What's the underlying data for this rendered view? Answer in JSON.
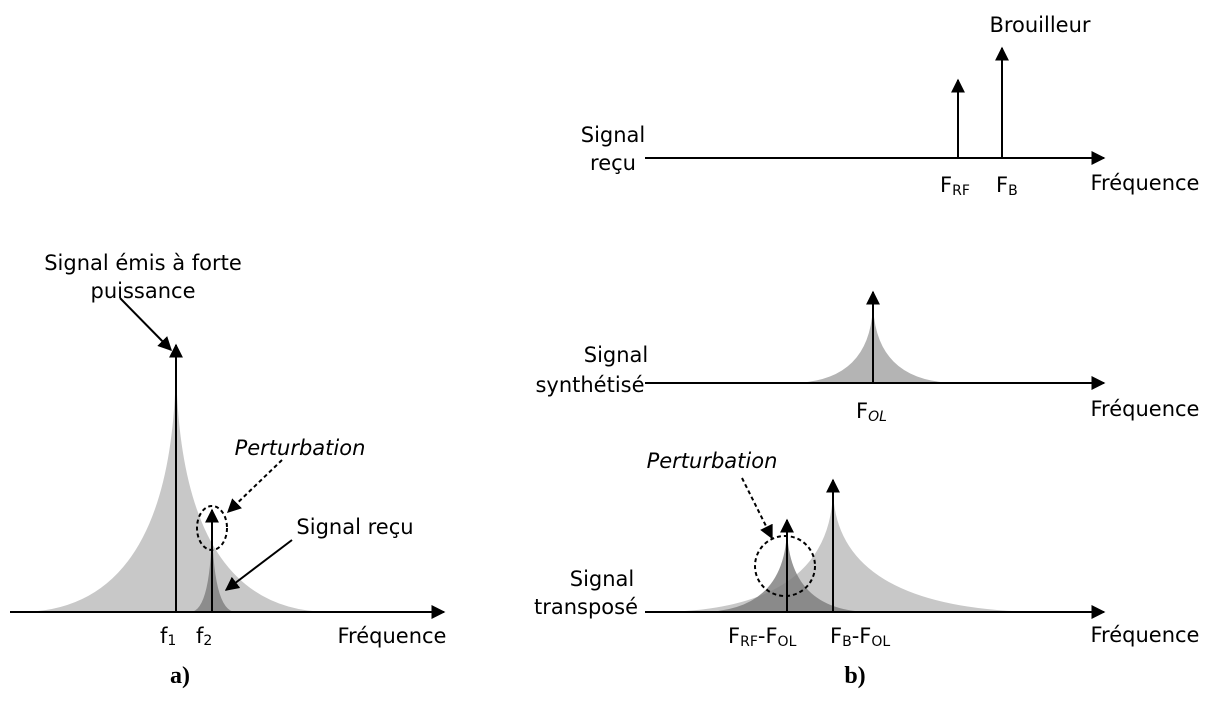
{
  "panel_a": {
    "label": "a)",
    "annotation_emis": [
      "Signal émis à forte",
      "puissance"
    ],
    "perturbation": "Perturbation",
    "signal_recu": "Signal reçu",
    "axis": "Fréquence",
    "f1": {
      "base": "f",
      "sub": "1"
    },
    "f2": {
      "base": "f",
      "sub": "2"
    }
  },
  "panel_b": {
    "label": "b)",
    "brouilleur": "Brouilleur",
    "perturbation": "Perturbation",
    "row_recu": {
      "name": [
        "Signal",
        "reçu"
      ],
      "axis": "Fréquence",
      "f_rf": {
        "base": "F",
        "sub": "RF"
      },
      "f_b": {
        "base": "F",
        "sub": "B"
      }
    },
    "row_synth": {
      "name": [
        "Signal",
        "synthétisé"
      ],
      "axis": "Fréquence",
      "f_ol": {
        "base": "F",
        "sub": "OL"
      }
    },
    "row_transp": {
      "name": [
        "Signal",
        "transposé"
      ],
      "axis": "Fréquence",
      "diff1": [
        {
          "base": "F",
          "sub": "RF"
        },
        {
          "base": "-F",
          "sub": "OL"
        }
      ],
      "diff2": [
        {
          "base": "F",
          "sub": "B"
        },
        {
          "base": "-F",
          "sub": "OL"
        }
      ]
    }
  }
}
